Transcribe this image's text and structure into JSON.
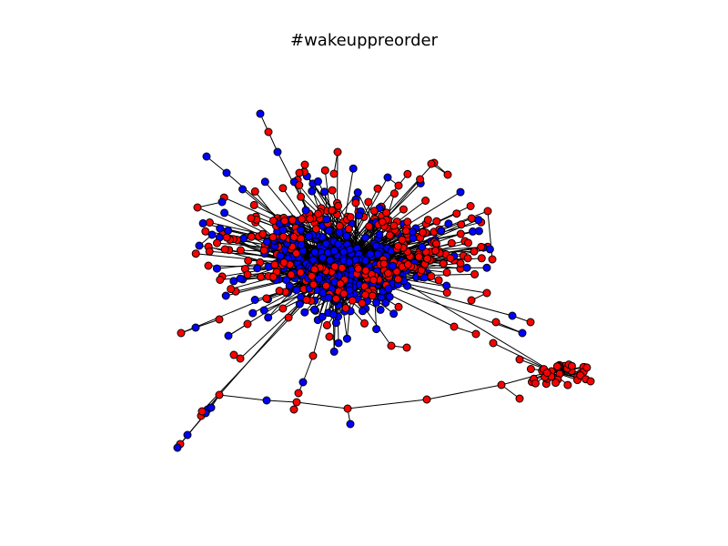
{
  "figure": {
    "title": "#wakeuppreorder"
  },
  "graph": {
    "type": "network",
    "node_colors": {
      "red": "#ff0000",
      "blue": "#0000ff"
    },
    "edge_color": "#000000"
  }
}
